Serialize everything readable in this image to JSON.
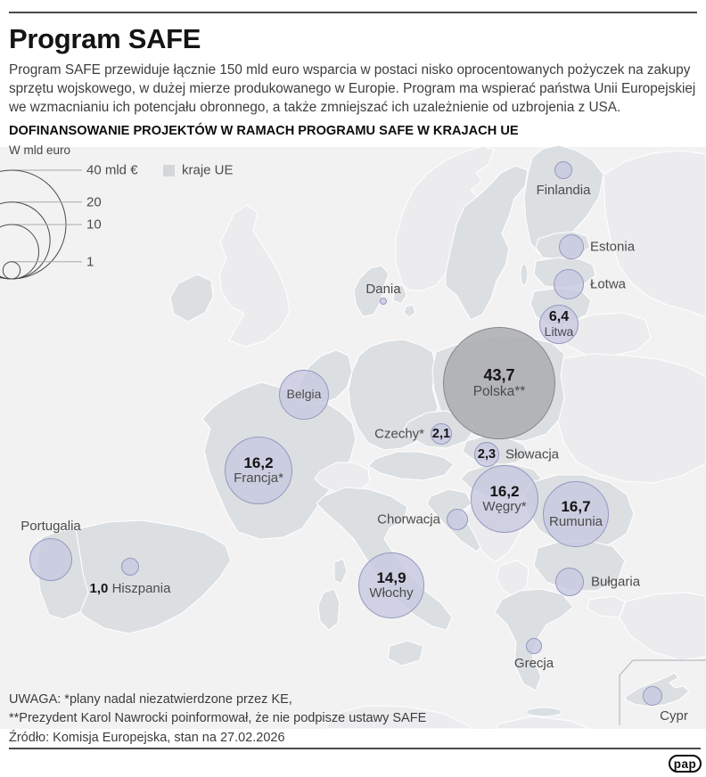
{
  "header": {
    "title": "Program SAFE",
    "intro": "Program SAFE przewiduje łącznie 150 mld euro wsparcia w postaci nisko oprocentowanych pożyczek na zakupy sprzętu wojskowego, w dużej mierze produkowanego w Europie. Program ma wspierać państwa Unii Europejskiej we wzmacnianiu ich potencjału obronnego, a także zmniejszać ich uzależnienie od uzbrojenia z USA.",
    "section_title": "DOFINANSOWANIE PROJEKTÓW W RAMACH PROGRAMU SAFE W KRAJACH UE"
  },
  "legend": {
    "unit_label": "W mld euro",
    "size_labels": [
      "40 mld €",
      "20",
      "10",
      "1"
    ],
    "size_values": [
      40,
      20,
      10,
      1
    ],
    "area_label": "kraje UE",
    "eu_color": "#dcdfe2",
    "non_eu_color": "#ececee",
    "bubble_color": "#c6c8de",
    "poland_bubble_color": "#b3b4b8"
  },
  "chart_data": {
    "type": "bubble-map",
    "title": "DOFINANSOWANIE PROJEKTÓW W RAMACH PROGRAMU SAFE W KRAJACH UE",
    "unit": "mld euro",
    "program_total": "150 mld euro",
    "countries": [
      {
        "id": "finlandia",
        "name": "Finlandia",
        "value": null,
        "value_label": null
      },
      {
        "id": "estonia",
        "name": "Estonia",
        "value": null,
        "value_label": null
      },
      {
        "id": "lotwa",
        "name": "Łotwa",
        "value": null,
        "value_label": null
      },
      {
        "id": "litwa",
        "name": "Litwa",
        "value": 6.4,
        "value_label": "6,4"
      },
      {
        "id": "dania",
        "name": "Dania",
        "value": null,
        "value_label": null
      },
      {
        "id": "polska",
        "name": "Polska**",
        "value": 43.7,
        "value_label": "43,7"
      },
      {
        "id": "belgia",
        "name": "Belgia",
        "value": null,
        "value_label": null
      },
      {
        "id": "czechy",
        "name": "Czechy*",
        "value": 2.1,
        "value_label": "2,1"
      },
      {
        "id": "slowacja",
        "name": "Słowacja",
        "value": 2.3,
        "value_label": "2,3"
      },
      {
        "id": "francja",
        "name": "Francja*",
        "value": 16.2,
        "value_label": "16,2"
      },
      {
        "id": "wegry",
        "name": "Węgry*",
        "value": 16.2,
        "value_label": "16,2"
      },
      {
        "id": "rumunia",
        "name": "Rumunia",
        "value": 16.7,
        "value_label": "16,7"
      },
      {
        "id": "chorwacja",
        "name": "Chorwacja",
        "value": null,
        "value_label": null
      },
      {
        "id": "portugalia",
        "name": "Portugalia",
        "value": null,
        "value_label": null
      },
      {
        "id": "hiszpania",
        "name": "Hiszpania",
        "value": 1.0,
        "value_label": "1,0"
      },
      {
        "id": "wlochy",
        "name": "Włochy",
        "value": 14.9,
        "value_label": "14,9"
      },
      {
        "id": "bulgaria",
        "name": "Bułgaria",
        "value": null,
        "value_label": null
      },
      {
        "id": "grecja",
        "name": "Grecja",
        "value": null,
        "value_label": null
      },
      {
        "id": "cypr",
        "name": "Cypr",
        "value": null,
        "value_label": null
      }
    ]
  },
  "footer": {
    "note_line1": "UWAGA: *plany nadal niezatwierdzone przez KE,",
    "note_line2": "**Prezydent Karol Nawrocki poinformował, że nie podpisze ustawy SAFE",
    "source": "Źródło: Komisja Europejska, stan na 27.02.2026",
    "logo": "pap"
  }
}
